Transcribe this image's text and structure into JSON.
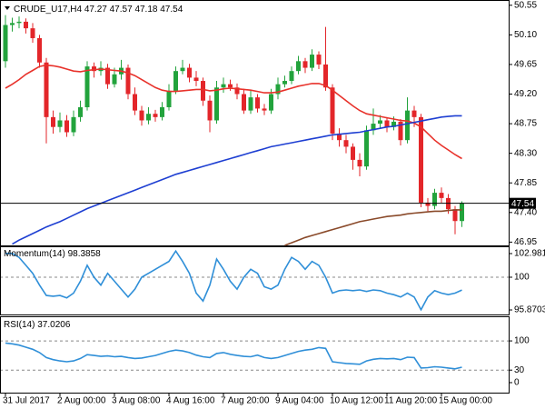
{
  "chart_data": [
    {
      "type": "candlestick",
      "symbol": "CRUDE_U17,H4",
      "categories": [
        "31 Jul 2017",
        null,
        null,
        null,
        null,
        null,
        null,
        null,
        "2 Aug 00:00",
        null,
        null,
        null,
        null,
        null,
        null,
        null,
        "3 Aug 08:00",
        null,
        null,
        null,
        null,
        null,
        null,
        null,
        "4 Aug 16:00",
        null,
        null,
        null,
        null,
        null,
        null,
        null,
        "7 Aug 20:00",
        null,
        null,
        null,
        null,
        null,
        null,
        null,
        "9 Aug 04:00",
        null,
        null,
        null,
        null,
        null,
        null,
        null,
        "10 Aug 12:00",
        null,
        null,
        null,
        null,
        null,
        null,
        null,
        "11 Aug 20:00",
        null,
        null,
        null,
        null,
        null,
        null,
        null,
        "15 Aug 00:00",
        null,
        null,
        null
      ],
      "open": [
        49.7,
        50.25,
        50.28,
        50.3,
        50.2,
        50.05,
        49.68,
        48.85,
        48.7,
        48.8,
        48.62,
        48.85,
        49.0,
        49.62,
        49.55,
        49.6,
        49.35,
        49.5,
        49.6,
        49.2,
        48.95,
        48.8,
        48.9,
        48.85,
        49.0,
        49.25,
        49.55,
        49.6,
        49.45,
        49.4,
        49.1,
        48.8,
        49.3,
        49.35,
        49.3,
        49.2,
        48.95,
        49.15,
        48.98,
        48.95,
        49.2,
        49.35,
        49.4,
        49.55,
        49.7,
        49.6,
        49.8,
        49.65,
        49.3,
        48.6,
        48.5,
        48.4,
        48.2,
        48.1,
        48.65,
        48.75,
        48.8,
        48.7,
        48.78,
        48.5,
        48.95,
        48.85,
        47.55,
        47.5,
        47.7,
        47.62,
        47.45,
        47.27
      ],
      "high": [
        50.4,
        50.36,
        50.38,
        50.35,
        50.28,
        50.1,
        49.75,
        48.95,
        48.92,
        48.88,
        48.95,
        49.1,
        49.7,
        49.68,
        49.7,
        49.66,
        49.6,
        49.72,
        49.65,
        49.3,
        49.02,
        49.0,
        48.96,
        49.08,
        49.35,
        49.62,
        49.72,
        49.66,
        49.55,
        49.45,
        49.18,
        49.4,
        49.45,
        49.42,
        49.36,
        49.28,
        49.25,
        49.2,
        49.05,
        49.28,
        49.45,
        49.48,
        49.62,
        49.78,
        49.75,
        49.88,
        49.85,
        50.22,
        49.35,
        48.68,
        48.58,
        48.45,
        48.3,
        48.72,
        48.98,
        48.88,
        48.85,
        48.86,
        48.82,
        49.15,
        49.02,
        48.9,
        47.62,
        47.76,
        47.78,
        47.68,
        47.5,
        47.57
      ],
      "low": [
        49.6,
        50.15,
        50.2,
        50.12,
        49.98,
        49.6,
        48.45,
        48.6,
        48.62,
        48.55,
        48.56,
        48.78,
        48.95,
        49.45,
        49.48,
        49.28,
        49.3,
        49.42,
        49.12,
        48.88,
        48.72,
        48.74,
        48.78,
        48.8,
        48.95,
        49.2,
        49.5,
        49.38,
        49.32,
        49.02,
        48.62,
        48.75,
        49.22,
        49.25,
        49.12,
        48.9,
        48.9,
        48.92,
        48.88,
        48.9,
        49.12,
        49.3,
        49.35,
        49.5,
        49.52,
        49.55,
        49.58,
        49.25,
        48.5,
        48.4,
        48.3,
        48.05,
        47.95,
        48.05,
        48.58,
        48.68,
        48.62,
        48.65,
        48.42,
        48.45,
        48.7,
        47.48,
        47.42,
        47.45,
        47.55,
        47.38,
        47.07,
        47.18
      ],
      "close": [
        50.25,
        50.28,
        50.3,
        50.2,
        50.05,
        49.68,
        48.85,
        48.7,
        48.8,
        48.62,
        48.85,
        49.0,
        49.62,
        49.55,
        49.6,
        49.35,
        49.5,
        49.6,
        49.2,
        48.95,
        48.8,
        48.9,
        48.85,
        49.0,
        49.25,
        49.55,
        49.6,
        49.45,
        49.4,
        49.1,
        48.8,
        49.3,
        49.35,
        49.3,
        49.2,
        48.95,
        49.15,
        48.98,
        48.95,
        49.2,
        49.35,
        49.4,
        49.55,
        49.7,
        49.6,
        49.8,
        49.65,
        49.3,
        48.6,
        48.5,
        48.4,
        48.2,
        48.1,
        48.65,
        48.75,
        48.8,
        48.7,
        48.78,
        48.5,
        48.95,
        48.85,
        47.55,
        47.5,
        47.7,
        47.62,
        47.45,
        47.27,
        47.54
      ],
      "up_color": "#22a33c",
      "down_color": "#e3262a",
      "series": [
        {
          "color": "#e8322b",
          "values": [
            49.29,
            49.35,
            49.42,
            49.5,
            49.56,
            49.62,
            49.64,
            49.63,
            49.61,
            49.58,
            49.55,
            49.54,
            49.56,
            49.57,
            49.58,
            49.57,
            49.56,
            49.55,
            49.52,
            49.48,
            49.42,
            49.36,
            49.3,
            49.26,
            49.24,
            49.24,
            49.25,
            49.26,
            49.27,
            49.27,
            49.25,
            49.26,
            49.28,
            49.29,
            49.28,
            49.27,
            49.26,
            49.24,
            49.22,
            49.22,
            49.23,
            49.26,
            49.29,
            49.32,
            49.34,
            49.36,
            49.36,
            49.33,
            49.26,
            49.18,
            49.1,
            49.02,
            48.95,
            48.9,
            48.88,
            48.86,
            48.84,
            48.82,
            48.8,
            48.79,
            48.76,
            48.7,
            48.6,
            48.5,
            48.42,
            48.35,
            48.28,
            48.22
          ]
        },
        {
          "color": "#1e3fd2",
          "values": [
            null,
            46.92,
            46.98,
            47.03,
            47.08,
            47.13,
            47.18,
            47.22,
            47.26,
            47.31,
            47.36,
            47.41,
            47.46,
            47.5,
            47.54,
            47.58,
            47.62,
            47.66,
            47.7,
            47.74,
            47.78,
            47.82,
            47.86,
            47.9,
            47.94,
            47.98,
            48.01,
            48.04,
            48.07,
            48.1,
            48.13,
            48.16,
            48.19,
            48.22,
            48.25,
            48.28,
            48.31,
            48.34,
            48.37,
            48.4,
            48.42,
            48.44,
            48.46,
            48.48,
            48.5,
            48.52,
            48.54,
            48.56,
            48.58,
            48.59,
            48.6,
            48.61,
            48.62,
            48.64,
            48.66,
            48.68,
            48.7,
            48.71,
            48.73,
            48.75,
            48.77,
            48.79,
            48.81,
            48.83,
            48.85,
            48.86,
            48.87,
            48.87
          ]
        },
        {
          "color": "#8a4a2a",
          "values": [
            null,
            null,
            null,
            null,
            null,
            null,
            null,
            null,
            null,
            null,
            null,
            null,
            null,
            null,
            null,
            null,
            null,
            null,
            null,
            null,
            null,
            null,
            null,
            null,
            null,
            null,
            null,
            null,
            null,
            null,
            null,
            null,
            null,
            null,
            null,
            null,
            null,
            null,
            null,
            null,
            null,
            46.9,
            46.94,
            46.98,
            47.02,
            47.05,
            47.08,
            47.11,
            47.14,
            47.17,
            47.2,
            47.23,
            47.26,
            47.28,
            47.3,
            47.32,
            47.34,
            47.35,
            47.36,
            47.38,
            47.39,
            47.4,
            47.41,
            47.42,
            47.42,
            47.43,
            47.44,
            47.44
          ]
        }
      ],
      "ylim": [
        46.9,
        50.63
      ],
      "yticks": [
        50.55,
        {
          "value": 50.1,
          "label": "50.10"
        },
        49.65,
        {
          "value": 49.2,
          "label": "49.20"
        },
        48.75,
        {
          "value": 48.3,
          "label": "48.30"
        },
        47.85,
        {
          "value": 47.4,
          "label": "47.40"
        },
        46.95
      ]
    },
    {
      "type": "line",
      "title": "Momentum(14)",
      "color": "#2f8fd8",
      "values": [
        103.0,
        103.0,
        102.5,
        101.5,
        100.5,
        99.0,
        97.7,
        97.6,
        97.7,
        97.4,
        98.0,
        99.5,
        101.5,
        100.0,
        99.0,
        100.5,
        99.5,
        98.5,
        97.5,
        98.5,
        100.0,
        100.5,
        101.0,
        101.5,
        102.0,
        103.3,
        102.0,
        100.5,
        98.0,
        97.0,
        99.0,
        102.3,
        101.0,
        99.5,
        98.5,
        100.0,
        101.0,
        100.5,
        98.8,
        98.5,
        99.0,
        101.0,
        102.5,
        102.0,
        101.0,
        102.0,
        101.5,
        100.0,
        98.0,
        98.3,
        98.4,
        98.3,
        98.4,
        98.2,
        98.4,
        98.3,
        98.0,
        97.8,
        97.5,
        98.0,
        97.5,
        95.9,
        97.5,
        98.3,
        98.0,
        97.8,
        98.0,
        98.3858
      ],
      "ylim": [
        95.3,
        103.9
      ],
      "yticks": [
        102.9812,
        100,
        95.8703
      ],
      "levels": [
        100
      ]
    },
    {
      "type": "line",
      "title": "RSI(14)",
      "color": "#2f8fd8",
      "values": [
        95,
        93,
        90,
        85,
        80,
        72,
        60,
        55,
        52,
        50,
        52,
        58,
        67,
        65,
        63,
        64,
        62,
        63,
        60,
        58,
        59,
        62,
        65,
        70,
        75,
        78,
        76,
        72,
        66,
        62,
        60,
        70,
        72,
        68,
        65,
        63,
        62,
        66,
        60,
        58,
        60,
        65,
        70,
        75,
        78,
        80,
        84,
        82,
        50,
        48,
        46,
        45,
        44,
        52,
        56,
        58,
        57,
        58,
        55,
        61,
        60,
        35,
        36,
        38,
        37,
        35,
        33,
        37.0206
      ],
      "ylim": [
        -24,
        159
      ],
      "yticks": [
        100,
        30,
        0
      ],
      "levels": [
        100,
        30
      ]
    }
  ]
}
